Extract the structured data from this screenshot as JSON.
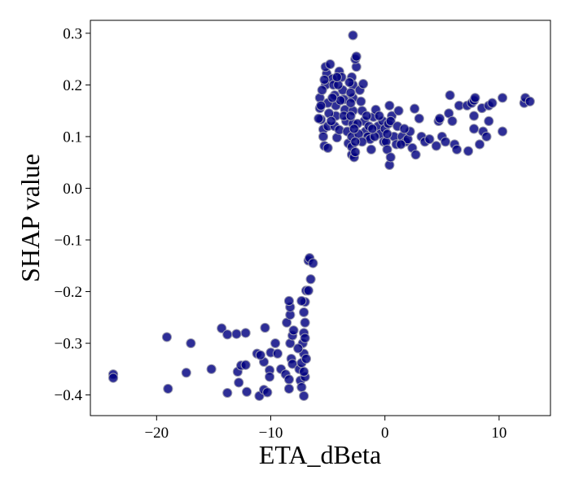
{
  "chart_data": {
    "type": "scatter",
    "title": "",
    "xlabel": "ETA_dBeta",
    "ylabel": "SHAP value",
    "xlim": [
      -25.8,
      14.5
    ],
    "ylim": [
      -0.44,
      0.325
    ],
    "xticks": [
      -20,
      -10,
      0,
      10
    ],
    "xtick_labels": [
      "−20",
      "−10",
      "0",
      "10"
    ],
    "yticks": [
      -0.4,
      -0.3,
      -0.2,
      -0.1,
      0.0,
      0.1,
      0.2,
      0.3
    ],
    "ytick_labels": [
      "−0.4",
      "−0.3",
      "−0.2",
      "−0.1",
      "0.0",
      "0.1",
      "0.2",
      "0.3"
    ],
    "grid": false,
    "legend": false,
    "marker_color": "#000080",
    "marker_edge_color": "#9a9aae",
    "series": [
      {
        "points": [
          [
            -23.8,
            -0.36
          ],
          [
            -23.8,
            -0.367
          ],
          [
            -19.1,
            -0.288
          ],
          [
            -19.0,
            -0.388
          ],
          [
            -17.4,
            -0.357
          ],
          [
            -17.0,
            -0.3
          ],
          [
            -15.2,
            -0.35
          ],
          [
            -14.3,
            -0.271
          ],
          [
            -13.8,
            -0.283
          ],
          [
            -13.8,
            -0.396
          ],
          [
            -13.0,
            -0.282
          ],
          [
            -12.9,
            -0.355
          ],
          [
            -12.8,
            -0.376
          ],
          [
            -12.6,
            -0.343
          ],
          [
            -12.2,
            -0.28
          ],
          [
            -12.1,
            -0.394
          ],
          [
            -12.2,
            -0.342
          ],
          [
            -11.2,
            -0.32
          ],
          [
            -11.0,
            -0.402
          ],
          [
            -10.6,
            -0.39
          ],
          [
            -10.5,
            -0.27
          ],
          [
            -10.3,
            -0.395
          ],
          [
            -10.1,
            -0.352
          ],
          [
            -10.0,
            -0.318
          ],
          [
            -10.1,
            -0.365
          ],
          [
            -10.6,
            -0.336
          ],
          [
            -10.9,
            -0.323
          ],
          [
            -9.6,
            -0.3
          ],
          [
            -9.4,
            -0.32
          ],
          [
            -9.1,
            -0.35
          ],
          [
            -8.7,
            -0.36
          ],
          [
            -8.4,
            -0.37
          ],
          [
            -8.4,
            -0.388
          ],
          [
            -8.2,
            -0.33
          ],
          [
            -8.6,
            -0.26
          ],
          [
            -8.3,
            -0.245
          ],
          [
            -8.3,
            -0.23
          ],
          [
            -8.4,
            -0.218
          ],
          [
            -8.3,
            -0.3
          ],
          [
            -8.1,
            -0.34
          ],
          [
            -7.5,
            -0.35
          ],
          [
            -7.4,
            -0.372
          ],
          [
            -7.3,
            -0.385
          ],
          [
            -7.1,
            -0.402
          ],
          [
            -7.0,
            -0.365
          ],
          [
            -7.1,
            -0.32
          ],
          [
            -7.2,
            -0.3
          ],
          [
            -7.1,
            -0.28
          ],
          [
            -7.0,
            -0.26
          ],
          [
            -7.1,
            -0.24
          ],
          [
            -7.0,
            -0.22
          ],
          [
            -6.9,
            -0.198
          ],
          [
            -6.7,
            -0.198
          ],
          [
            -6.5,
            -0.176
          ],
          [
            -6.7,
            -0.14
          ],
          [
            -6.6,
            -0.135
          ],
          [
            -6.3,
            -0.145
          ],
          [
            -7.3,
            -0.218
          ],
          [
            -7.6,
            -0.31
          ],
          [
            -7.3,
            -0.338
          ],
          [
            -8.1,
            -0.285
          ],
          [
            -8.0,
            -0.275
          ],
          [
            -7.0,
            -0.29
          ],
          [
            -6.9,
            -0.33
          ],
          [
            -7.1,
            -0.355
          ],
          [
            -5.7,
            0.175
          ],
          [
            -5.7,
            0.155
          ],
          [
            -5.6,
            0.133
          ],
          [
            -5.4,
            0.114
          ],
          [
            -5.3,
            0.082
          ],
          [
            -5.2,
            0.2
          ],
          [
            -5.1,
            0.222
          ],
          [
            -5.2,
            0.235
          ],
          [
            -4.8,
            0.24
          ],
          [
            -5.0,
            0.078
          ],
          [
            -5.0,
            0.12
          ],
          [
            -4.6,
            0.212
          ],
          [
            -4.5,
            0.2
          ],
          [
            -4.4,
            0.18
          ],
          [
            -4.3,
            0.16
          ],
          [
            -4.3,
            0.14
          ],
          [
            -4.4,
            0.12
          ],
          [
            -4.2,
            0.098
          ],
          [
            -4.0,
            0.113
          ],
          [
            -4.0,
            0.226
          ],
          [
            -3.8,
            0.215
          ],
          [
            -3.7,
            0.19
          ],
          [
            -3.6,
            0.172
          ],
          [
            -3.5,
            0.152
          ],
          [
            -3.4,
            0.13
          ],
          [
            -3.3,
            0.11
          ],
          [
            -3.2,
            0.087
          ],
          [
            -2.9,
            0.065
          ],
          [
            -2.9,
            0.08
          ],
          [
            -2.9,
            0.1
          ],
          [
            -2.8,
            0.125
          ],
          [
            -2.8,
            0.15
          ],
          [
            -2.8,
            0.175
          ],
          [
            -2.8,
            0.2
          ],
          [
            -2.9,
            0.215
          ],
          [
            -2.7,
            0.06
          ],
          [
            -2.6,
            0.07
          ],
          [
            -2.5,
            0.235
          ],
          [
            -2.6,
            0.25
          ],
          [
            -2.5,
            0.255
          ],
          [
            -2.8,
            0.296
          ],
          [
            -2.2,
            0.19
          ],
          [
            -2.1,
            0.168
          ],
          [
            -2.0,
            0.15
          ],
          [
            -1.9,
            0.202
          ],
          [
            -1.8,
            0.13
          ],
          [
            -1.7,
            0.11
          ],
          [
            -1.5,
            0.1
          ],
          [
            -1.3,
            0.095
          ],
          [
            -1.2,
            0.075
          ],
          [
            -1.0,
            0.138
          ],
          [
            -0.8,
            0.152
          ],
          [
            -0.6,
            0.12
          ],
          [
            -0.4,
            0.105
          ],
          [
            -0.2,
            0.13
          ],
          [
            -0.1,
            0.09
          ],
          [
            0.0,
            0.115
          ],
          [
            0.1,
            0.09
          ],
          [
            0.2,
            0.075
          ],
          [
            0.3,
            0.125
          ],
          [
            0.4,
            0.16
          ],
          [
            0.4,
            0.045
          ],
          [
            0.5,
            0.06
          ],
          [
            0.6,
            0.14
          ],
          [
            0.8,
            0.1
          ],
          [
            1.0,
            0.085
          ],
          [
            1.2,
            0.15
          ],
          [
            1.5,
            0.1
          ],
          [
            1.8,
            0.09
          ],
          [
            2.0,
            0.095
          ],
          [
            2.2,
            0.11
          ],
          [
            2.4,
            0.078
          ],
          [
            2.6,
            0.154
          ],
          [
            2.7,
            0.065
          ],
          [
            3.0,
            0.135
          ],
          [
            3.2,
            0.1
          ],
          [
            3.5,
            0.09
          ],
          [
            3.9,
            0.095
          ],
          [
            4.5,
            0.082
          ],
          [
            4.7,
            0.13
          ],
          [
            4.8,
            0.135
          ],
          [
            5.0,
            0.1
          ],
          [
            5.3,
            0.09
          ],
          [
            5.6,
            0.145
          ],
          [
            5.7,
            0.18
          ],
          [
            5.9,
            0.13
          ],
          [
            6.1,
            0.085
          ],
          [
            6.3,
            0.075
          ],
          [
            6.5,
            0.16
          ],
          [
            7.3,
            0.072
          ],
          [
            7.2,
            0.16
          ],
          [
            7.6,
            0.165
          ],
          [
            7.8,
            0.17
          ],
          [
            7.8,
            0.14
          ],
          [
            7.8,
            0.115
          ],
          [
            7.9,
            0.175
          ],
          [
            8.3,
            0.085
          ],
          [
            8.5,
            0.155
          ],
          [
            8.6,
            0.11
          ],
          [
            8.9,
            0.1
          ],
          [
            9.1,
            0.16
          ],
          [
            9.1,
            0.13
          ],
          [
            9.4,
            0.165
          ],
          [
            10.3,
            0.11
          ],
          [
            10.3,
            0.175
          ],
          [
            12.2,
            0.165
          ],
          [
            12.3,
            0.175
          ],
          [
            12.7,
            0.168
          ],
          [
            -5.5,
            0.19
          ],
          [
            -5.3,
            0.21
          ],
          [
            -5.0,
            0.165
          ],
          [
            -4.9,
            0.145
          ],
          [
            -4.7,
            0.13
          ],
          [
            -4.1,
            0.2
          ],
          [
            -3.9,
            0.17
          ],
          [
            -3.6,
            0.14
          ],
          [
            -3.1,
            0.205
          ],
          [
            -3.0,
            0.185
          ],
          [
            -3.0,
            0.165
          ],
          [
            -3.0,
            0.14
          ],
          [
            -2.4,
            0.125
          ],
          [
            -2.3,
            0.105
          ],
          [
            -2.0,
            0.09
          ],
          [
            -1.6,
            0.14
          ],
          [
            -1.4,
            0.12
          ],
          [
            -0.9,
            0.1
          ],
          [
            -0.5,
            0.14
          ],
          [
            0.2,
            0.105
          ],
          [
            0.5,
            0.13
          ],
          [
            1.1,
            0.12
          ],
          [
            1.4,
            0.085
          ],
          [
            1.7,
            0.115
          ],
          [
            -5.6,
            0.16
          ],
          [
            -5.8,
            0.135
          ],
          [
            -5.4,
            0.1
          ],
          [
            -4.2,
            0.215
          ],
          [
            -4.6,
            0.175
          ],
          [
            -2.7,
            0.115
          ],
          [
            -2.6,
            0.09
          ],
          [
            -1.1,
            0.115
          ]
        ]
      }
    ]
  }
}
